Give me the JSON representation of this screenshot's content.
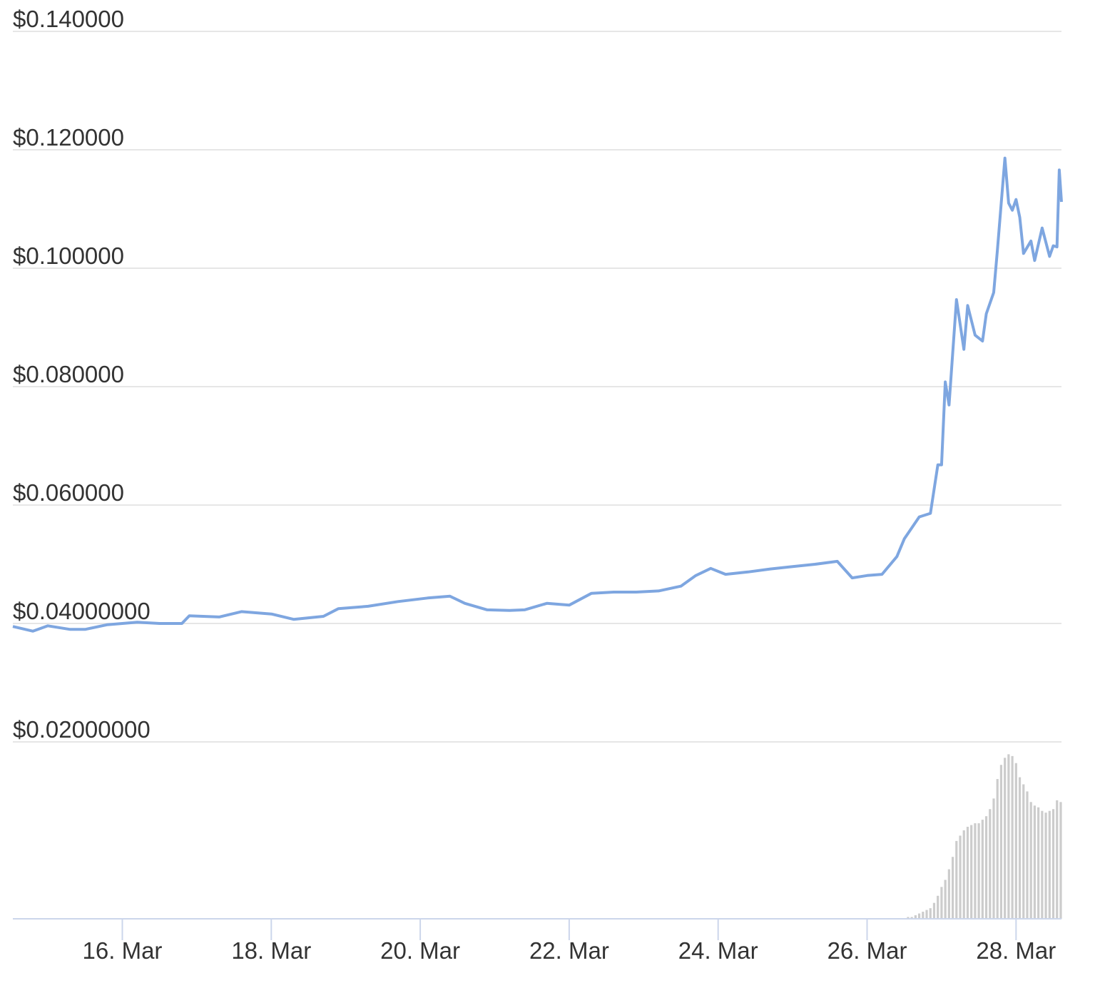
{
  "chart_data": [
    {
      "type": "line",
      "x": [
        14.53,
        14.8,
        15.0,
        15.3,
        15.5,
        15.8,
        16.2,
        16.5,
        16.8,
        16.9,
        17.3,
        17.6,
        18.0,
        18.3,
        18.7,
        18.9,
        19.3,
        19.7,
        20.1,
        20.4,
        20.6,
        20.9,
        21.2,
        21.4,
        21.7,
        22.0,
        22.3,
        22.6,
        22.9,
        23.2,
        23.5,
        23.7,
        23.9,
        24.1,
        24.4,
        24.7,
        25.0,
        25.3,
        25.6,
        25.8,
        26.0,
        26.2,
        26.4,
        26.5,
        26.7,
        26.85,
        26.95,
        27.0,
        27.05,
        27.1,
        27.2,
        27.3,
        27.35,
        27.45,
        27.55,
        27.6,
        27.7,
        27.75,
        27.85,
        27.9,
        27.95,
        28.0,
        28.05,
        28.1,
        28.2,
        28.25,
        28.35,
        28.45,
        28.5,
        28.55,
        28.58,
        28.61
      ],
      "values": [
        0.0395,
        0.0387,
        0.0396,
        0.039,
        0.039,
        0.0398,
        0.0402,
        0.04,
        0.04,
        0.0413,
        0.0411,
        0.042,
        0.0416,
        0.0407,
        0.0412,
        0.0425,
        0.0429,
        0.0437,
        0.0443,
        0.0446,
        0.0434,
        0.0423,
        0.0422,
        0.0423,
        0.0434,
        0.0431,
        0.0451,
        0.0453,
        0.0453,
        0.0455,
        0.0463,
        0.0481,
        0.0493,
        0.0483,
        0.0487,
        0.0492,
        0.0496,
        0.05,
        0.0505,
        0.0477,
        0.0481,
        0.0483,
        0.0513,
        0.0543,
        0.058,
        0.0586,
        0.0668,
        0.0668,
        0.0808,
        0.0769,
        0.0947,
        0.0863,
        0.0937,
        0.0887,
        0.0877,
        0.0923,
        0.0959,
        0.1031,
        0.1186,
        0.111,
        0.1098,
        0.1116,
        0.1086,
        0.1025,
        0.1046,
        0.1013,
        0.1068,
        0.102,
        0.1038,
        0.1036,
        0.1166,
        0.1112
      ],
      "color": "#7ea6e0",
      "xlim": [
        14.53,
        28.61
      ],
      "ylim": [
        0.02,
        0.14
      ],
      "yticks": [
        {
          "value": 0.02,
          "label": "$0.02000000"
        },
        {
          "value": 0.04,
          "label": "$0.04000000"
        },
        {
          "value": 0.06,
          "label": "$0.060000"
        },
        {
          "value": 0.08,
          "label": "$0.080000"
        },
        {
          "value": 0.1,
          "label": "$0.100000"
        },
        {
          "value": 0.12,
          "label": "$0.120000"
        },
        {
          "value": 0.14,
          "label": "$0.140000"
        }
      ],
      "grid": true
    },
    {
      "type": "bar",
      "x": [
        26.55,
        26.6,
        26.65,
        26.7,
        26.75,
        26.8,
        26.85,
        26.9,
        26.95,
        27.0,
        27.05,
        27.1,
        27.15,
        27.2,
        27.25,
        27.3,
        27.35,
        27.4,
        27.45,
        27.5,
        27.55,
        27.6,
        27.65,
        27.7,
        27.75,
        27.8,
        27.85,
        27.9,
        27.95,
        28.0,
        28.05,
        28.1,
        28.15,
        28.2,
        28.25,
        28.3,
        28.35,
        28.4,
        28.45,
        28.5,
        28.55,
        28.6
      ],
      "values": [
        1,
        1,
        2,
        3,
        4,
        5,
        6,
        9,
        13,
        18,
        22,
        28,
        35,
        44,
        47,
        50,
        52,
        53,
        54,
        54,
        56,
        58,
        62,
        68,
        79,
        87,
        91,
        93,
        92,
        88,
        80,
        76,
        72,
        66,
        64,
        63,
        61,
        60,
        61,
        62,
        67,
        66
      ],
      "color": "#cccccc",
      "xlim": [
        14.53,
        28.61
      ],
      "ylim": [
        0,
        100
      ],
      "xticks": [
        {
          "value": 16,
          "label": "16. Mar"
        },
        {
          "value": 18,
          "label": "18. Mar"
        },
        {
          "value": 20,
          "label": "20. Mar"
        },
        {
          "value": 22,
          "label": "22. Mar"
        },
        {
          "value": 24,
          "label": "24. Mar"
        },
        {
          "value": 26,
          "label": "26. Mar"
        },
        {
          "value": 28,
          "label": "28. Mar"
        }
      ]
    }
  ]
}
